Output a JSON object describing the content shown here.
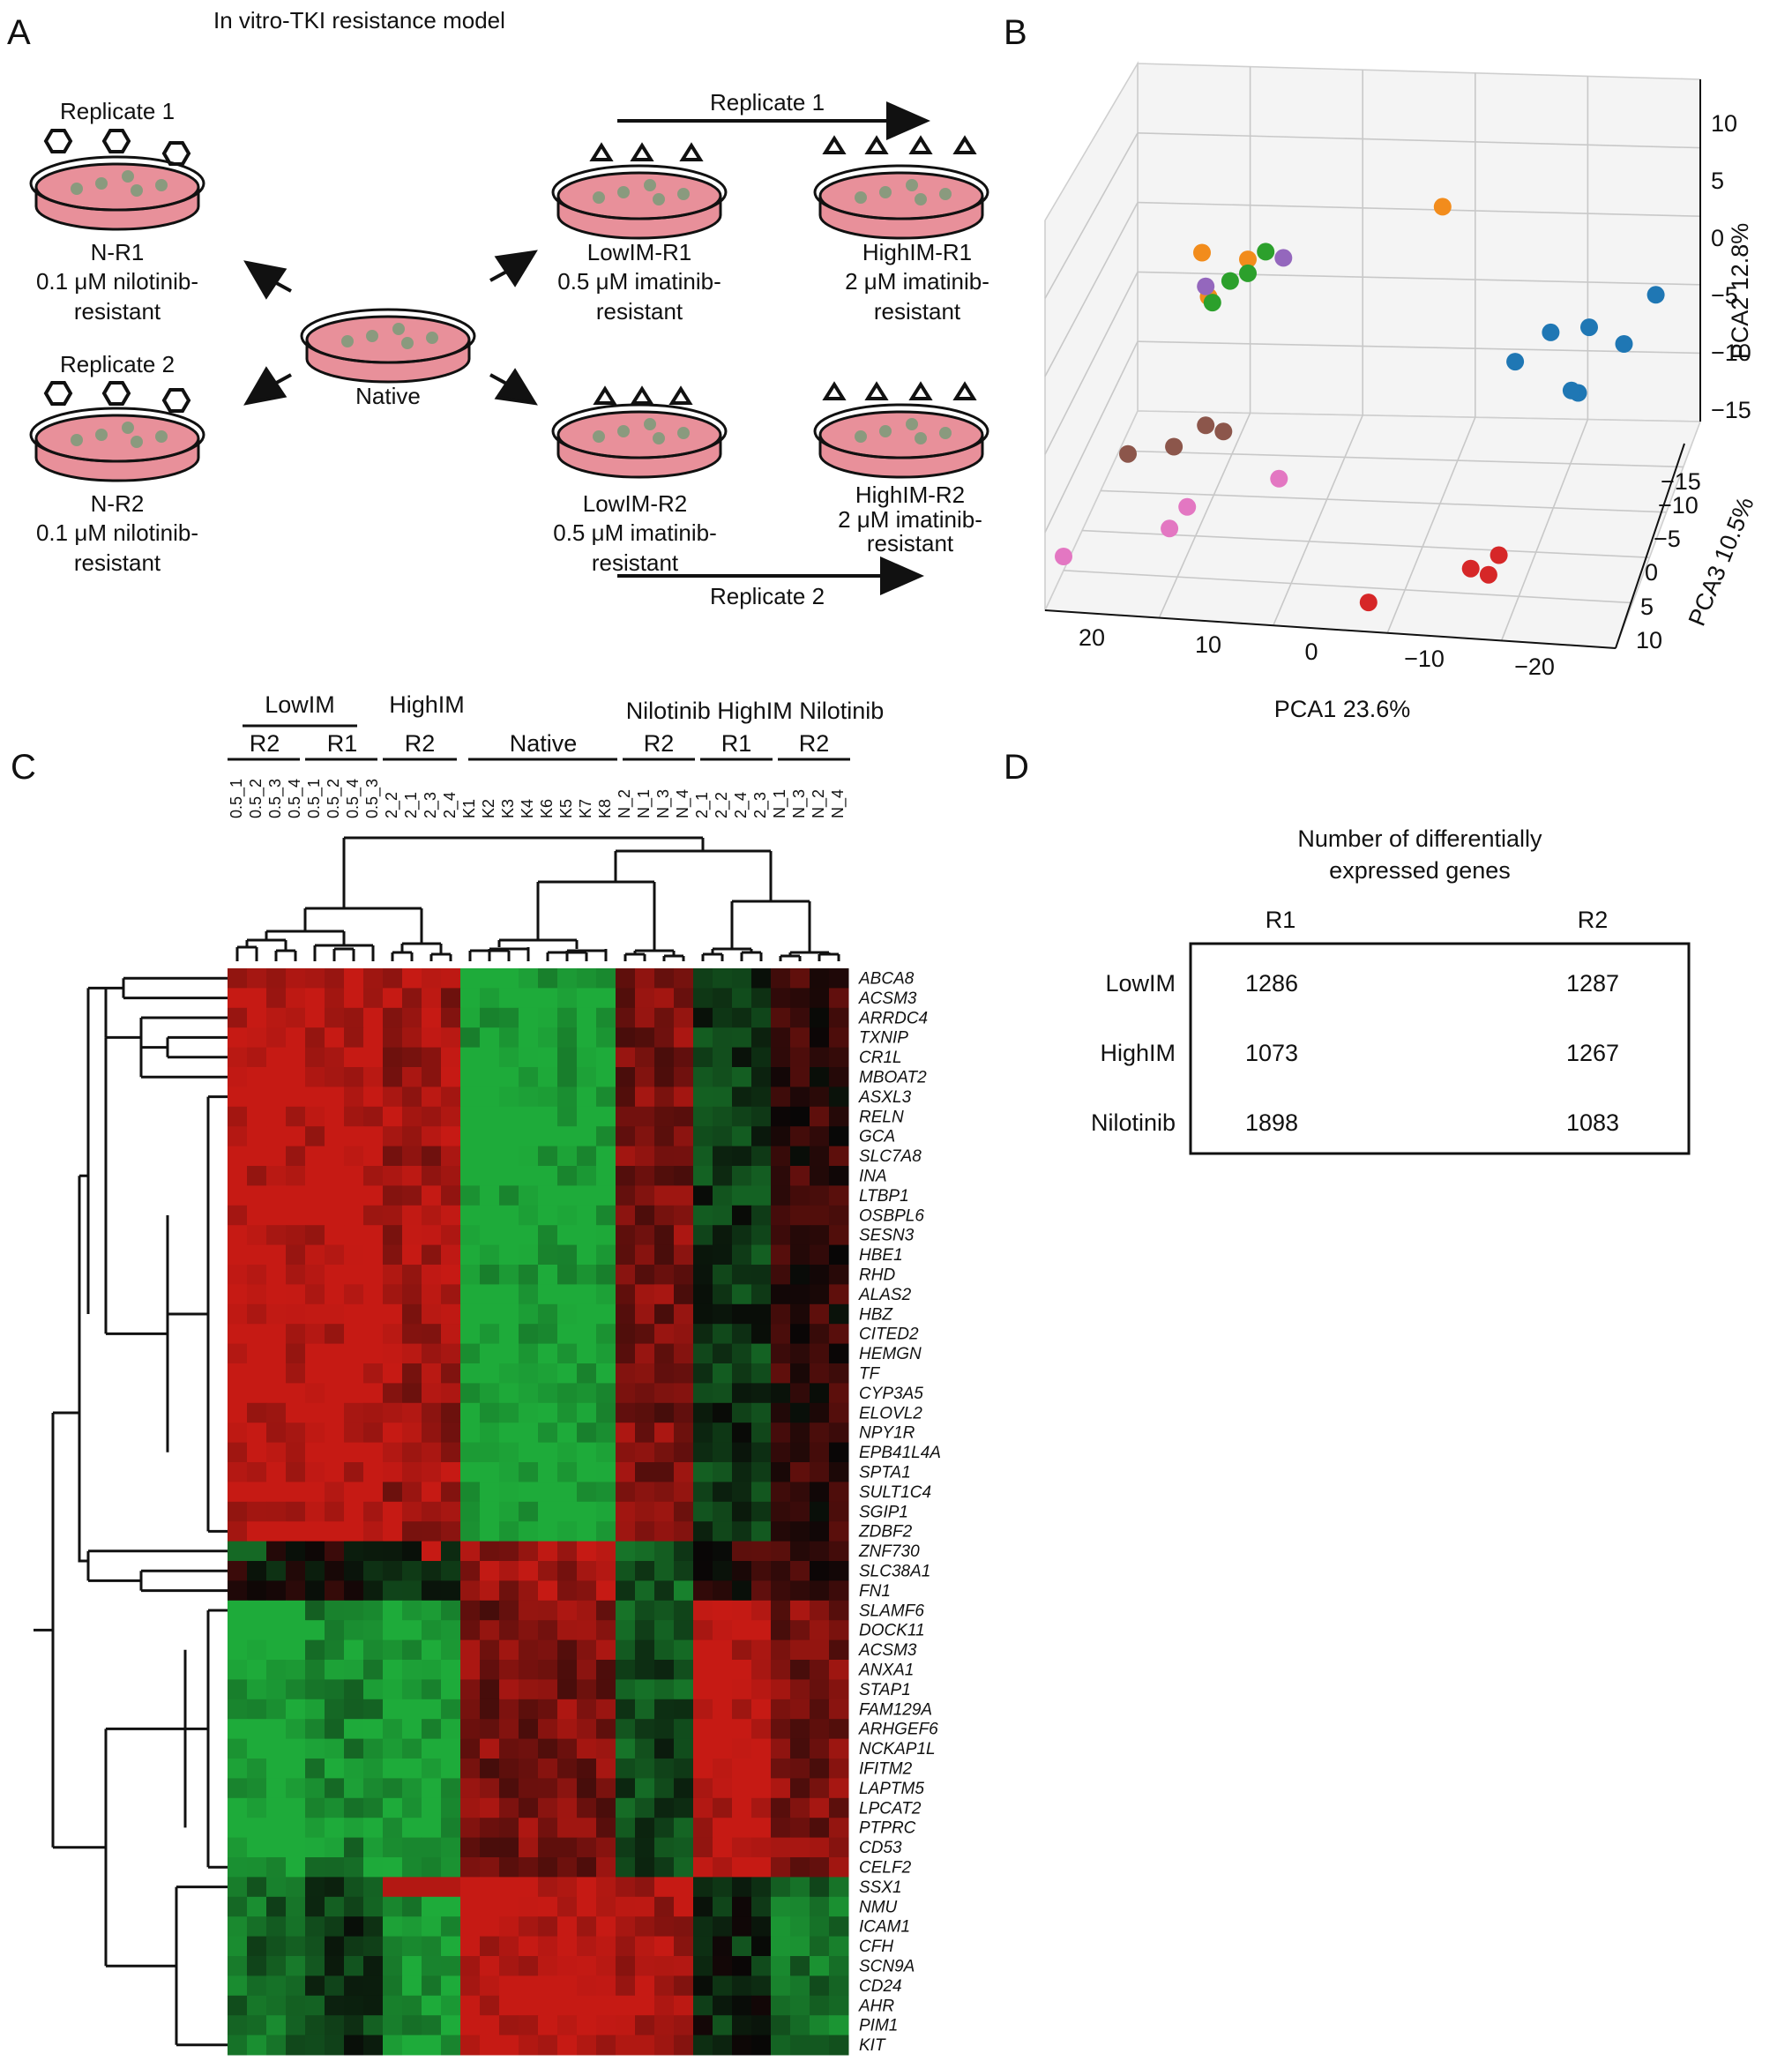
{
  "panels": {
    "a": {
      "letter": "A",
      "title": "In vitro-TKI resistance model",
      "native_label": "Native",
      "nilotinib": {
        "rep1_label": "Replicate 1",
        "rep2_label": "Replicate 2",
        "r1": {
          "name": "N-R1",
          "line1": "0.1 μM nilotinib-",
          "line2": "resistant"
        },
        "r2": {
          "name": "N-R2",
          "line1": "0.1 μM nilotinib-",
          "line2": "resistant"
        }
      },
      "imatinib": {
        "arrow1_label": "Replicate 1",
        "arrow2_label": "Replicate 2",
        "low_r1": {
          "name": "LowIM-R1",
          "line1": "0.5 μM imatinib-",
          "line2": "resistant"
        },
        "high_r1": {
          "name": "HighIM-R1",
          "line1": "2 μM imatinib-",
          "line2": "resistant"
        },
        "low_r2": {
          "name": "LowIM-R2",
          "line1": "0.5 μM imatinib-",
          "line2": "resistant"
        },
        "high_r2": {
          "name": "HighIM-R2",
          "line1": "2 μM imatinib-",
          "line2": "resistant"
        }
      },
      "colors": {
        "dish_fill": "#e8909a",
        "cell": "#8a9a7e"
      },
      "icons": [
        "petri-dish-icon",
        "hexagon-drug-icon",
        "triangle-drug-icon",
        "arrow-icon"
      ]
    },
    "b": {
      "letter": "B",
      "xlabel": "PCA1 23.6%",
      "ylabel": "PCA2 12.8%",
      "zlabel": "PCA3 10.5%",
      "x_ticks": [
        "20",
        "10",
        "0",
        "−10",
        "−20"
      ],
      "y_ticks": [
        "10",
        "5",
        "0",
        "−5",
        "−10",
        "−15"
      ],
      "z_ticks": [
        "−15",
        "−10",
        "−5",
        "0",
        "5",
        "10"
      ]
    },
    "c": {
      "letter": "C",
      "group_labels": {
        "lowim": "LowIM",
        "highim": "HighIM",
        "nil_highim_nil": "Nilotinib HighIM Nilotinib",
        "lowim_r2": "R2",
        "lowim_r1": "R1",
        "highim_r2": "R2",
        "native": "Native",
        "nil_r2": "R2",
        "highim_r1": "R1",
        "nil_r1r2": "R2"
      },
      "heatmap_colors": {
        "high": "#d2231e",
        "mid": "#050505",
        "low": "#1fae3c"
      }
    },
    "d": {
      "letter": "D",
      "title_line1": "Number of differentially",
      "title_line2": "expressed genes",
      "col_headers": [
        "R1",
        "R2"
      ],
      "rows": [
        {
          "label": "LowIM",
          "r1": "1286",
          "r2": "1287"
        },
        {
          "label": "HighIM",
          "r1": "1073",
          "r2": "1267"
        },
        {
          "label": "Nilotinib",
          "r1": "1898",
          "r2": "1083"
        }
      ]
    }
  },
  "chart_data": [
    {
      "type": "scatter",
      "dimensions": 3,
      "xlabel": "PCA1 23.6%",
      "ylabel": "PCA2 12.8%",
      "zlabel": "PCA3 10.5%",
      "xlim": [
        -20,
        20
      ],
      "ylim": [
        -15,
        10
      ],
      "zlim": [
        -15,
        10
      ],
      "grid": true,
      "series": [
        {
          "color": "#f28c1c",
          "points": [
            [
              12,
              4,
              -2
            ],
            [
              9,
              3,
              -3
            ],
            [
              -3,
              3,
              -10
            ],
            [
              11,
              2,
              0
            ]
          ]
        },
        {
          "color": "#2ca02c",
          "points": [
            [
              10,
              2,
              -2
            ],
            [
              8,
              3,
              -4
            ],
            [
              11,
              1,
              -1
            ],
            [
              9,
              2,
              -3
            ]
          ]
        },
        {
          "color": "#9467bd",
          "points": [
            [
              12,
              1,
              -3
            ],
            [
              7,
              2,
              -5
            ]
          ]
        },
        {
          "color": "#1f77b4",
          "points": [
            [
              -20,
              1,
              -3
            ],
            [
              -18,
              -2,
              -2
            ],
            [
              -15,
              -2,
              -4
            ],
            [
              -12,
              -3,
              -5
            ],
            [
              -10,
              -4,
              -3
            ],
            [
              -15,
              -5,
              -1
            ],
            [
              -14,
              -6,
              -3
            ]
          ]
        },
        {
          "color": "#8c564b",
          "points": [
            [
              17,
              -10,
              -1
            ],
            [
              14,
              -10,
              -2
            ],
            [
              12,
              -9,
              -3
            ],
            [
              11,
              -10,
              -4
            ]
          ]
        },
        {
          "color": "#e377c2",
          "points": [
            [
              20,
              -14,
              5
            ],
            [
              13,
              -13,
              3
            ],
            [
              12,
              -12,
              2
            ],
            [
              6,
              -11,
              0
            ]
          ]
        },
        {
          "color": "#d62728",
          "points": [
            [
              -3,
              -14,
              10
            ],
            [
              -10,
              -12,
              9
            ],
            [
              -11,
              -13,
              8
            ],
            [
              -12,
              -11,
              9
            ]
          ]
        }
      ]
    },
    {
      "type": "heatmap",
      "columns": [
        "0.5_1",
        "0.5_2",
        "0.5_3",
        "0.5_4",
        "0.5_1",
        "0.5_2",
        "0.5_4",
        "0.5_3",
        "2_2",
        "2_1",
        "2_3",
        "2_4",
        "K1",
        "K2",
        "K3",
        "K4",
        "K6",
        "K5",
        "K7",
        "K8",
        "N_2",
        "N_1",
        "N_3",
        "N_4",
        "2_1",
        "2_2",
        "2_4",
        "2_3",
        "N_1",
        "N_3",
        "N_2",
        "N_4"
      ],
      "rows": [
        "ABCA8",
        "ACSM3",
        "ARRDC4",
        "TXNIP",
        "CR1L",
        "MBOAT2",
        "ASXL3",
        "RELN",
        "GCA",
        "SLC7A8",
        "INA",
        "LTBP1",
        "OSBPL6",
        "SESN3",
        "HBE1",
        "RHD",
        "ALAS2",
        "HBZ",
        "CITED2",
        "HEMGN",
        "TF",
        "CYP3A5",
        "ELOVL2",
        "NPY1R",
        "EPB41L4A",
        "SPTA1",
        "SULT1C4",
        "SGIP1",
        "ZDBF2",
        "ZNF730",
        "SLC38A1",
        "FN1",
        "SLAMF6",
        "DOCK11",
        "ACSM3",
        "ANXA1",
        "STAP1",
        "FAM129A",
        "ARHGEF6",
        "NCKAP1L",
        "IFITM2",
        "LAPTM5",
        "LPCAT2",
        "PTPRC",
        "CD53",
        "CELF2",
        "SSX1",
        "NMU",
        "ICAM1",
        "CFH",
        "SCN9A",
        "CD24",
        "AHR",
        "PIM1",
        "KIT"
      ],
      "column_groups": [
        {
          "label": "LowIM R2",
          "count": 4
        },
        {
          "label": "LowIM R1",
          "count": 4
        },
        {
          "label": "HighIM R2",
          "count": 4
        },
        {
          "label": "Native",
          "count": 8
        },
        {
          "label": "Nilotinib R2",
          "count": 4
        },
        {
          "label": "HighIM R1",
          "count": 4
        },
        {
          "label": "Nilotinib R2",
          "count": 4
        }
      ],
      "row_clusters": [
        {
          "genes": "ABCA8–ZDBF2",
          "pattern_by_group": [
            1.0,
            1.0,
            0.8,
            -1.0,
            0.6,
            -0.3,
            0.2
          ]
        },
        {
          "genes": "ZNF730–FN1",
          "pattern_by_group": [
            0.0,
            0.0,
            -0.3,
            0.8,
            -0.5,
            0.2,
            0.2
          ]
        },
        {
          "genes": "SLAMF6–CELF2",
          "pattern_by_group": [
            -1.0,
            -0.8,
            -1.0,
            0.6,
            -0.4,
            1.0,
            0.6
          ]
        },
        {
          "genes": "SSX1–KIT",
          "pattern_by_group": [
            -0.6,
            -0.3,
            -0.9,
            1.0,
            0.9,
            -0.2,
            -0.6
          ]
        }
      ],
      "color_scale": [
        "green (low)",
        "black (mid)",
        "red (high)"
      ]
    },
    {
      "type": "table",
      "title": "Number of differentially expressed genes",
      "columns": [
        "R1",
        "R2"
      ],
      "rows": [
        "LowIM",
        "HighIM",
        "Nilotinib"
      ],
      "values": [
        [
          1286,
          1287
        ],
        [
          1073,
          1267
        ],
        [
          1898,
          1083
        ]
      ]
    }
  ]
}
